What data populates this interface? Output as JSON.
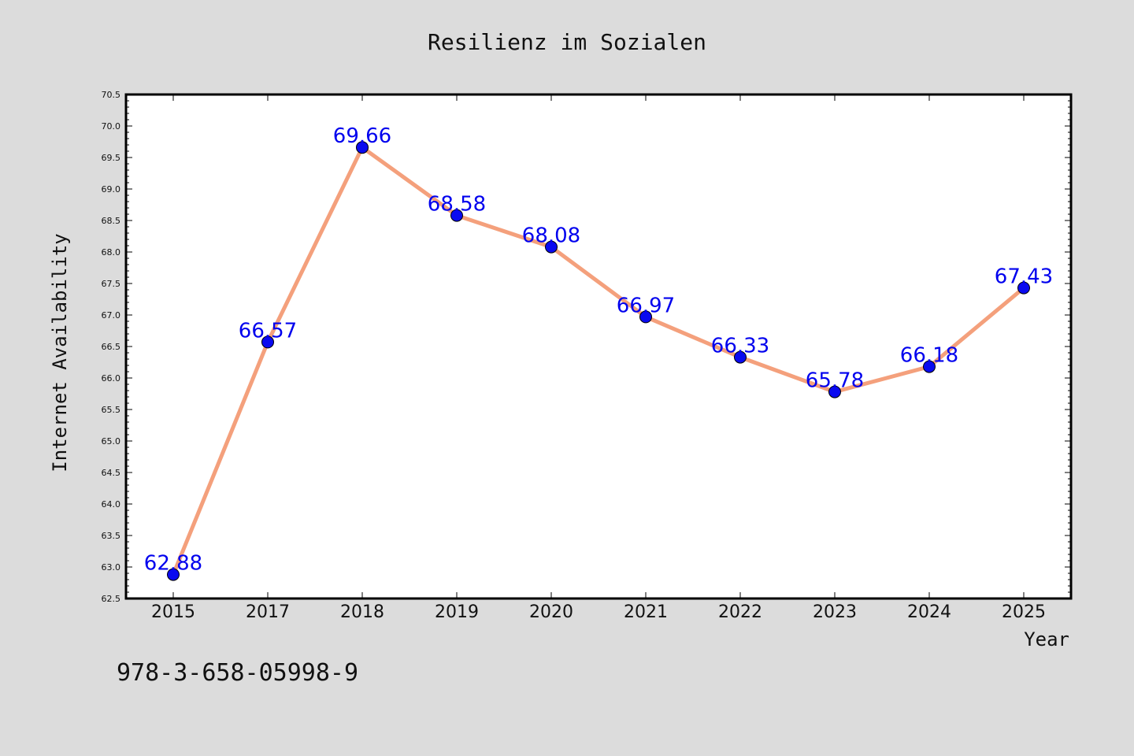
{
  "chart_data": {
    "type": "line",
    "title": "Resilienz im Sozialen",
    "xlabel": "Year",
    "ylabel": "Internet Availability",
    "categories": [
      "2015",
      "2017",
      "2018",
      "2019",
      "2020",
      "2021",
      "2022",
      "2023",
      "2024",
      "2025"
    ],
    "series": [
      {
        "values": [
          62.88,
          66.57,
          69.66,
          68.58,
          68.08,
          66.97,
          66.33,
          65.78,
          66.18,
          67.43
        ],
        "labels": [
          "62.88",
          "66.57",
          "69.66",
          "68.58",
          "68.08",
          "66.97",
          "66.33",
          "65.78",
          "66.18",
          "67.43"
        ],
        "line_color": "#f4a07c",
        "marker_color": "#0a0af0",
        "label_color": "#0000ee"
      }
    ],
    "ylim": [
      62.5,
      70.5
    ],
    "yticks": [
      "62.5",
      "63.0",
      "63.5",
      "64.0",
      "64.5",
      "65.0",
      "65.5",
      "66.0",
      "66.5",
      "67.0",
      "67.5",
      "68.0",
      "68.5",
      "69.0",
      "69.5",
      "70.0",
      "70.5"
    ],
    "grid": false,
    "legend": false
  },
  "annotation": "978-3-658-05998-9",
  "colors": {
    "background": "#dcdcdc",
    "plot_background": "#ffffff",
    "axis": "#000000"
  }
}
